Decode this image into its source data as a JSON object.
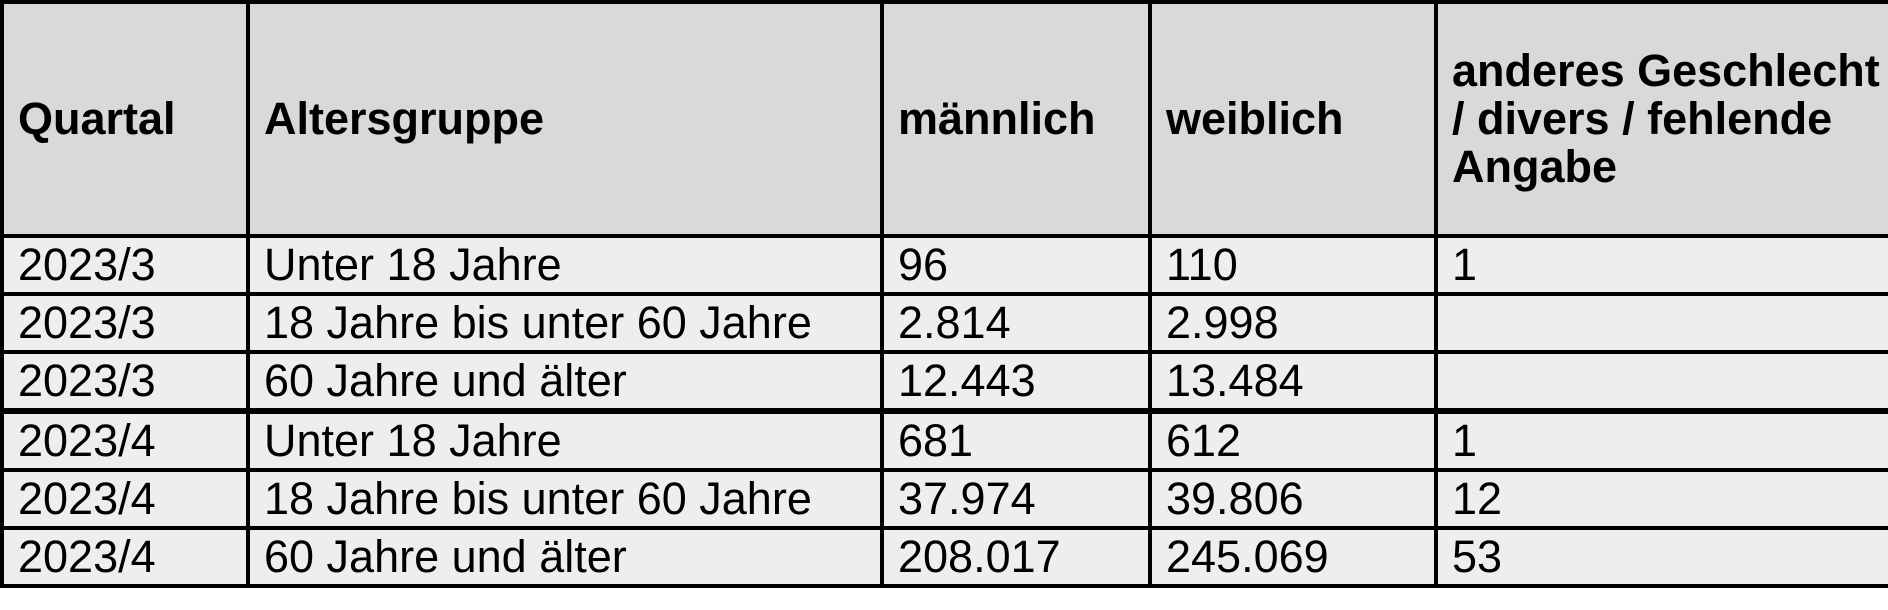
{
  "table": {
    "headers": [
      "Quartal",
      "Altersgruppe",
      "männlich",
      "weiblich",
      "anderes Geschlecht / divers / fehlende Angabe"
    ],
    "rows": [
      [
        "2023/3",
        "Unter 18 Jahre",
        "96",
        "110",
        "1"
      ],
      [
        "2023/3",
        "18 Jahre bis unter 60 Jahre",
        "2.814",
        "2.998",
        ""
      ],
      [
        "2023/3",
        "60 Jahre und älter",
        "12.443",
        "13.484",
        ""
      ],
      [
        "2023/4",
        "Unter 18 Jahre",
        "681",
        "612",
        "1"
      ],
      [
        "2023/4",
        "18 Jahre bis unter 60 Jahre",
        "37.974",
        "39.806",
        "12"
      ],
      [
        "2023/4",
        "60 Jahre und älter",
        "208.017",
        "245.069",
        "53"
      ]
    ]
  }
}
